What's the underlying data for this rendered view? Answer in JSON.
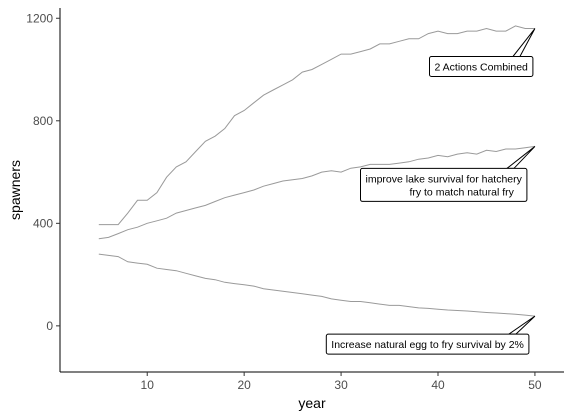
{
  "chart_data": {
    "type": "line",
    "xlabel": "year",
    "ylabel": "spawners",
    "xlim": [
      1,
      53
    ],
    "ylim": [
      -180,
      1240
    ],
    "x_ticks": [
      10,
      20,
      30,
      40,
      50
    ],
    "y_ticks": [
      0,
      400,
      800,
      1200
    ],
    "grid": false,
    "series": [
      {
        "x": [
          5,
          6,
          7,
          8,
          9,
          10,
          11,
          12,
          13,
          14,
          15,
          16,
          17,
          18,
          19,
          20,
          21,
          22,
          23,
          24,
          25,
          26,
          27,
          28,
          29,
          30,
          31,
          32,
          33,
          34,
          35,
          36,
          37,
          38,
          39,
          40,
          41,
          42,
          43,
          44,
          45,
          46,
          47,
          48,
          49,
          50
        ],
        "values": [
          395,
          395,
          395,
          440,
          490,
          490,
          520,
          580,
          620,
          640,
          680,
          720,
          740,
          770,
          820,
          840,
          870,
          900,
          920,
          940,
          960,
          990,
          1000,
          1020,
          1040,
          1060,
          1060,
          1070,
          1080,
          1100,
          1100,
          1110,
          1120,
          1120,
          1140,
          1150,
          1140,
          1140,
          1150,
          1150,
          1160,
          1150,
          1150,
          1170,
          1160,
          1160
        ]
      },
      {
        "x": [
          5,
          6,
          7,
          8,
          9,
          10,
          11,
          12,
          13,
          14,
          15,
          16,
          17,
          18,
          19,
          20,
          21,
          22,
          23,
          24,
          25,
          26,
          27,
          28,
          29,
          30,
          31,
          32,
          33,
          34,
          35,
          36,
          37,
          38,
          39,
          40,
          41,
          42,
          43,
          44,
          45,
          46,
          47,
          48,
          49,
          50
        ],
        "values": [
          340,
          345,
          360,
          375,
          385,
          400,
          410,
          420,
          440,
          450,
          460,
          470,
          485,
          500,
          510,
          520,
          530,
          545,
          555,
          565,
          570,
          575,
          585,
          600,
          605,
          600,
          615,
          620,
          630,
          630,
          630,
          635,
          640,
          650,
          655,
          665,
          660,
          670,
          675,
          670,
          685,
          680,
          690,
          690,
          695,
          700
        ]
      },
      {
        "x": [
          5,
          6,
          7,
          8,
          9,
          10,
          11,
          12,
          13,
          14,
          15,
          16,
          17,
          18,
          19,
          20,
          21,
          22,
          23,
          24,
          25,
          26,
          27,
          28,
          29,
          30,
          31,
          32,
          33,
          34,
          35,
          36,
          37,
          38,
          39,
          40,
          41,
          42,
          43,
          44,
          45,
          46,
          47,
          48,
          49,
          50
        ],
        "values": [
          280,
          275,
          270,
          250,
          245,
          240,
          225,
          220,
          215,
          205,
          195,
          185,
          180,
          170,
          165,
          160,
          155,
          145,
          140,
          135,
          130,
          125,
          120,
          115,
          105,
          100,
          95,
          95,
          90,
          85,
          80,
          80,
          75,
          70,
          68,
          65,
          62,
          60,
          58,
          55,
          52,
          50,
          48,
          45,
          42,
          38
        ]
      }
    ],
    "annotations": [
      {
        "lines": [
          "2 Actions Combined"
        ],
        "point": [
          50,
          1160
        ],
        "align": "right"
      },
      {
        "lines": [
          "improve lake survival for hatchery",
          "fry to match natural fry"
        ],
        "point": [
          50,
          700
        ],
        "align": "right"
      },
      {
        "lines": [
          "Increase natural egg to fry survival by 2%"
        ],
        "point": [
          50,
          38
        ],
        "align": "right"
      }
    ]
  }
}
